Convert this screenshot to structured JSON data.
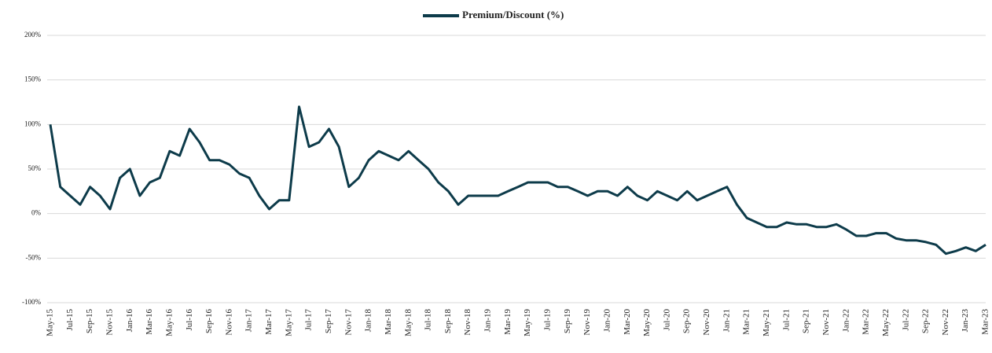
{
  "chart_data": {
    "type": "line",
    "categories": [
      "May-15",
      null,
      "Jul-15",
      null,
      "Sep-15",
      null,
      "Nov-15",
      null,
      "Jan-16",
      null,
      "Mar-16",
      null,
      "May-16",
      null,
      "Jul-16",
      null,
      "Sep-16",
      null,
      "Nov-16",
      null,
      "Jan-17",
      null,
      "Mar-17",
      null,
      "May-17",
      null,
      "Jul-17",
      null,
      "Sep-17",
      null,
      "Nov-17",
      null,
      "Jan-18",
      null,
      "Mar-18",
      null,
      "May-18",
      null,
      "Jul-18",
      null,
      "Sep-18",
      null,
      "Nov-18",
      null,
      "Jan-19",
      null,
      "Mar-19",
      null,
      "May-19",
      null,
      "Jul-19",
      null,
      "Sep-19",
      null,
      "Nov-19",
      null,
      "Jan-20",
      null,
      "Mar-20",
      null,
      "May-20",
      null,
      "Jul-20",
      null,
      "Sep-20",
      null,
      "Nov-20",
      null,
      "Jan-21",
      null,
      "Mar-21",
      null,
      "May-21",
      null,
      "Jul-21",
      null,
      "Sep-21",
      null,
      "Nov-21",
      null,
      "Jan-22",
      null,
      "Mar-22",
      null,
      "May-22",
      null,
      "Jul-22",
      null,
      "Sep-22",
      null,
      "Nov-22",
      null,
      "Jan-23",
      null,
      "Mar-23"
    ],
    "series": [
      {
        "name": "Premium/Discount (%)",
        "color": "#0d3b4a",
        "values": [
          100,
          30,
          20,
          10,
          30,
          20,
          5,
          40,
          50,
          20,
          35,
          40,
          70,
          65,
          95,
          80,
          60,
          60,
          55,
          45,
          40,
          20,
          5,
          15,
          15,
          120,
          75,
          80,
          95,
          75,
          30,
          40,
          60,
          70,
          65,
          60,
          70,
          60,
          50,
          35,
          25,
          10,
          20,
          20,
          20,
          20,
          25,
          30,
          35,
          35,
          35,
          30,
          30,
          25,
          20,
          25,
          25,
          20,
          30,
          20,
          15,
          25,
          20,
          15,
          25,
          15,
          20,
          25,
          30,
          10,
          -5,
          -10,
          -15,
          -15,
          -10,
          -12,
          -12,
          -15,
          -15,
          -12,
          -18,
          -25,
          -25,
          -22,
          -22,
          -28,
          -30,
          -30,
          -32,
          -35,
          -45,
          -42,
          -38,
          -42,
          -35
        ]
      }
    ],
    "ylim": [
      -100,
      200
    ],
    "yticks": [
      {
        "value": -100,
        "label": "-100%"
      },
      {
        "value": -50,
        "label": "-50%"
      },
      {
        "value": 0,
        "label": "0%"
      },
      {
        "value": 50,
        "label": "50%"
      },
      {
        "value": 100,
        "label": "100%"
      },
      {
        "value": 150,
        "label": "150%"
      },
      {
        "value": 200,
        "label": "200%"
      }
    ],
    "grid": true,
    "legend": "top"
  }
}
